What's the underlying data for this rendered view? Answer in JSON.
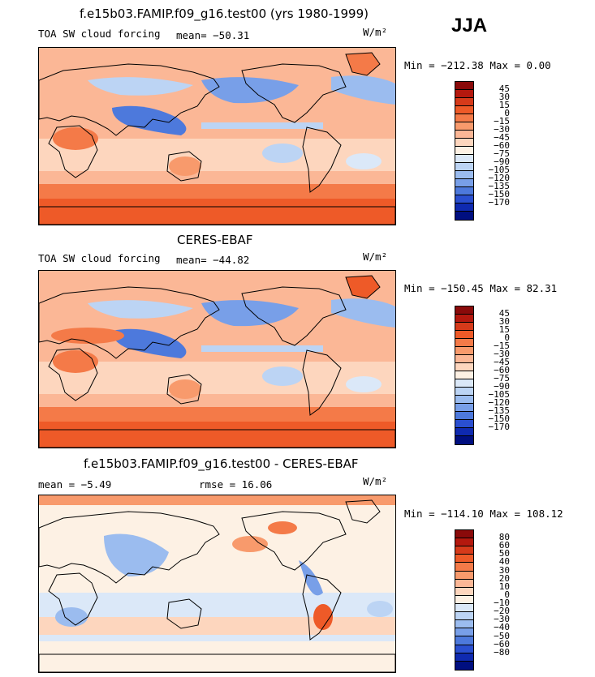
{
  "season": "JJA",
  "panels": [
    {
      "title": "f.e15b03.FAMIP.f09_g16.test00 (yrs 1980-1999)",
      "variable": "TOA SW cloud forcing",
      "stat1": "mean= −50.31",
      "stat2": "",
      "units": "W/m²",
      "minmax": "Min = −212.38 Max =   0.00",
      "levels": [
        "45",
        "30",
        "15",
        "0",
        "−15",
        "−30",
        "−45",
        "−60",
        "−75",
        "−90",
        "−105",
        "−120",
        "−135",
        "−150",
        "−170"
      ],
      "colors": [
        "#8a0a0a",
        "#b4180e",
        "#d63a1a",
        "#ee5a28",
        "#f47a48",
        "#f89a6c",
        "#fbb796",
        "#fdd6be",
        "#fdf1e4",
        "#dbe8f8",
        "#bcd4f4",
        "#9bbcef",
        "#789fe8",
        "#4d79dc",
        "#2a4fd0",
        "#0f2ab0",
        "#000f80"
      ]
    },
    {
      "title": "CERES-EBAF",
      "variable": "TOA SW cloud forcing",
      "stat1": "mean= −44.82",
      "stat2": "",
      "units": "W/m²",
      "minmax": "Min = −150.45 Max =  82.31",
      "levels": [
        "45",
        "30",
        "15",
        "0",
        "−15",
        "−30",
        "−45",
        "−60",
        "−75",
        "−90",
        "−105",
        "−120",
        "−135",
        "−150",
        "−170"
      ],
      "colors": [
        "#8a0a0a",
        "#b4180e",
        "#d63a1a",
        "#ee5a28",
        "#f47a48",
        "#f89a6c",
        "#fbb796",
        "#fdd6be",
        "#fdf1e4",
        "#dbe8f8",
        "#bcd4f4",
        "#9bbcef",
        "#789fe8",
        "#4d79dc",
        "#2a4fd0",
        "#0f2ab0",
        "#000f80"
      ]
    },
    {
      "title": "f.e15b03.FAMIP.f09_g16.test00 - CERES-EBAF",
      "variable": "",
      "stat1": "mean =   −5.49",
      "stat2": "rmse =  16.06",
      "units": "W/m²",
      "minmax": "Min = −114.10 Max = 108.12",
      "levels": [
        "80",
        "60",
        "50",
        "40",
        "30",
        "20",
        "10",
        "0",
        "−10",
        "−20",
        "−30",
        "−40",
        "−50",
        "−60",
        "−80"
      ],
      "colors": [
        "#8a0a0a",
        "#b4180e",
        "#d63a1a",
        "#ee5a28",
        "#f47a48",
        "#f89a6c",
        "#fbb796",
        "#fdd6be",
        "#fdf1e4",
        "#dbe8f8",
        "#bcd4f4",
        "#9bbcef",
        "#789fe8",
        "#4d79dc",
        "#2a4fd0",
        "#0f2ab0",
        "#000f80"
      ]
    }
  ]
}
